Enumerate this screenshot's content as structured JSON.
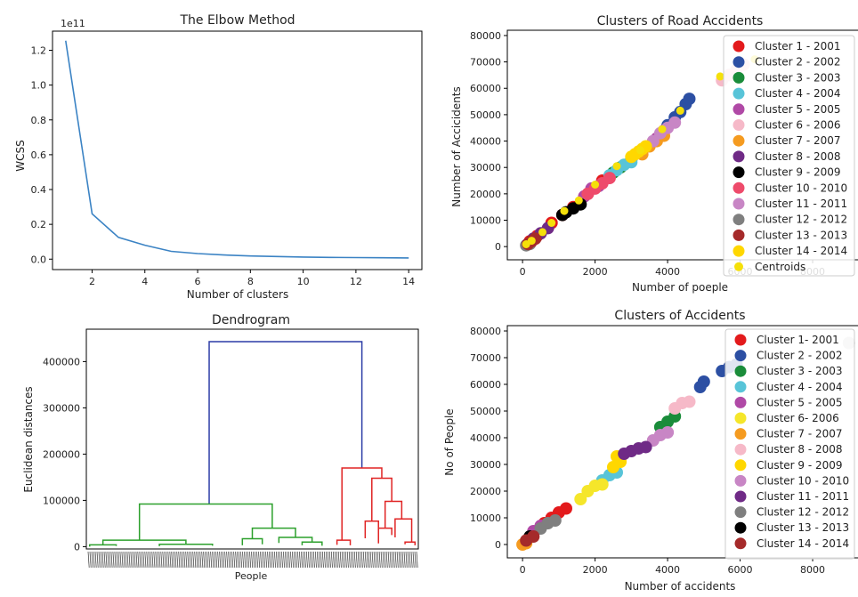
{
  "chart_data": [
    {
      "id": "elbow",
      "type": "line",
      "title": "The Elbow Method",
      "xlabel": "Number of clusters",
      "ylabel": "WCSS",
      "y_offset_label": "1e11",
      "xlim": [
        0.5,
        14.5
      ],
      "ylim": [
        -0.06,
        1.31
      ],
      "xticks": [
        2,
        4,
        6,
        8,
        10,
        12,
        14
      ],
      "yticks": [
        0.0,
        0.2,
        0.4,
        0.6,
        0.8,
        1.0,
        1.2
      ],
      "ytick_labels": [
        "0.0",
        "0.2",
        "0.4",
        "0.6",
        "0.8",
        "1.0",
        "1.2"
      ],
      "x": [
        1,
        2,
        3,
        4,
        5,
        6,
        7,
        8,
        9,
        10,
        11,
        12,
        13,
        14
      ],
      "y": [
        1.255,
        0.26,
        0.125,
        0.08,
        0.045,
        0.032,
        0.024,
        0.018,
        0.015,
        0.012,
        0.01,
        0.009,
        0.008,
        0.007
      ],
      "color": "#3b83c4"
    },
    {
      "id": "dendrogram",
      "type": "dendrogram",
      "title": "Dendrogram",
      "xlabel": "People",
      "ylabel": "Euclidean distances",
      "ylim": [
        -5000,
        470000
      ],
      "yticks": [
        0,
        100000,
        200000,
        300000,
        400000
      ],
      "ytick_labels": [
        "0",
        "100000",
        "200000",
        "300000",
        "400000"
      ],
      "colors": {
        "root": "#2b3ca6",
        "left": "#2ca02c",
        "right": "#e02424"
      },
      "links": [
        {
          "group": "root",
          "x1": 0.37,
          "x2": 0.83,
          "h1": 92000,
          "h2": 170000,
          "top": 443000
        },
        {
          "group": "left",
          "x1": 0.16,
          "x2": 0.56,
          "h1": 14000,
          "h2": 40000,
          "top": 92000
        },
        {
          "group": "left",
          "x1": 0.05,
          "x2": 0.3,
          "h1": 4000,
          "h2": 5000,
          "top": 14000
        },
        {
          "group": "left",
          "x1": 0.01,
          "x2": 0.09,
          "h1": 0,
          "h2": 1500,
          "top": 4000
        },
        {
          "group": "left",
          "x1": 0.22,
          "x2": 0.38,
          "h1": 1000,
          "h2": 2000,
          "top": 5000
        },
        {
          "group": "left",
          "x1": 0.5,
          "x2": 0.63,
          "h1": 17000,
          "h2": 20000,
          "top": 40000
        },
        {
          "group": "left",
          "x1": 0.47,
          "x2": 0.53,
          "h1": 3000,
          "h2": 5000,
          "top": 17000
        },
        {
          "group": "left",
          "x1": 0.58,
          "x2": 0.68,
          "h1": 8000,
          "h2": 10000,
          "top": 20000
        },
        {
          "group": "left",
          "x1": 0.65,
          "x2": 0.71,
          "h1": 3000,
          "h2": 2000,
          "top": 10000
        },
        {
          "group": "right",
          "x1": 0.77,
          "x2": 0.89,
          "h1": 14000,
          "h2": 148000,
          "top": 170000
        },
        {
          "group": "right",
          "x1": 0.755,
          "x2": 0.795,
          "h1": 4000,
          "h2": 3000,
          "top": 14000
        },
        {
          "group": "right",
          "x1": 0.86,
          "x2": 0.92,
          "h1": 55000,
          "h2": 98000,
          "top": 148000
        },
        {
          "group": "right",
          "x1": 0.84,
          "x2": 0.88,
          "h1": 18000,
          "h2": 7000,
          "top": 55000
        },
        {
          "group": "right",
          "x1": 0.9,
          "x2": 0.95,
          "h1": 40000,
          "h2": 60000,
          "top": 98000
        },
        {
          "group": "right",
          "x1": 0.88,
          "x2": 0.92,
          "h1": 10000,
          "h2": 25000,
          "top": 40000
        },
        {
          "group": "right",
          "x1": 0.93,
          "x2": 0.98,
          "h1": 20000,
          "h2": 10000,
          "top": 60000
        },
        {
          "group": "right",
          "x1": 0.96,
          "x2": 0.99,
          "h1": 5000,
          "h2": 3000,
          "top": 10000
        }
      ]
    },
    {
      "id": "road",
      "type": "scatter",
      "title": "Clusters of Road Accidents",
      "xlabel": "Number of poeple",
      "ylabel": "Number of Accicidents",
      "xlim": [
        -420,
        9300
      ],
      "ylim": [
        -5000,
        82000
      ],
      "xticks": [
        0,
        2000,
        4000,
        6000,
        8000
      ],
      "yticks": [
        0,
        10000,
        20000,
        30000,
        40000,
        50000,
        60000,
        70000,
        80000
      ],
      "legend_position": "upper right",
      "series": [
        {
          "name": "Cluster 1 - 2001",
          "color": "#e31a1c",
          "points": [
            [
              200,
              2000
            ],
            [
              400,
              4000
            ],
            [
              800,
              9000
            ],
            [
              1100,
              12000
            ],
            [
              1400,
              15000
            ],
            [
              1800,
              20000
            ],
            [
              2200,
              25000
            ]
          ]
        },
        {
          "name": "Cluster 2 - 2002",
          "color": "#2c4fa3",
          "points": [
            [
              4000,
              46000
            ],
            [
              4200,
              49000
            ],
            [
              4350,
              51000
            ],
            [
              4500,
              54000
            ],
            [
              4600,
              56000
            ]
          ]
        },
        {
          "name": "Cluster 3 - 2003",
          "color": "#1a8c3a",
          "points": [
            [
              2500,
              28000
            ],
            [
              2700,
              30000
            ],
            [
              3000,
              33000
            ]
          ]
        },
        {
          "name": "Cluster 4 - 2004",
          "color": "#58c4d8",
          "points": [
            [
              2400,
              27000
            ],
            [
              2600,
              29000
            ],
            [
              2800,
              31000
            ],
            [
              3000,
              32000
            ]
          ]
        },
        {
          "name": "Cluster 5 - 2005",
          "color": "#b049a6",
          "points": [
            [
              1700,
              19000
            ],
            [
              1900,
              22000
            ],
            [
              2100,
              23000
            ],
            [
              3700,
              41000
            ],
            [
              3900,
              44000
            ]
          ]
        },
        {
          "name": "Cluster 6 - 2006",
          "color": "#f6b9c8",
          "points": [
            [
              5500,
              63000
            ],
            [
              5700,
              65000
            ],
            [
              5900,
              67000
            ],
            [
              6100,
              69000
            ]
          ]
        },
        {
          "name": "Cluster 7 - 2007",
          "color": "#f59b20",
          "points": [
            [
              3300,
              35000
            ],
            [
              3500,
              38000
            ],
            [
              3700,
              40000
            ],
            [
              3900,
              42000
            ]
          ]
        },
        {
          "name": "Cluster 8 - 2008",
          "color": "#6f2a86",
          "points": [
            [
              300,
              3000
            ],
            [
              500,
              5000
            ],
            [
              700,
              7000
            ]
          ]
        },
        {
          "name": "Cluster 9 - 2009",
          "color": "#000000",
          "points": [
            [
              1100,
              12000
            ],
            [
              1200,
              13000
            ],
            [
              1400,
              14500
            ],
            [
              1600,
              16000
            ]
          ]
        },
        {
          "name": "Cluster 10 - 2010",
          "color": "#ee4b6b",
          "points": [
            [
              1800,
              20000
            ],
            [
              2000,
              22000
            ],
            [
              2200,
              24000
            ],
            [
              2400,
              26000
            ]
          ]
        },
        {
          "name": "Cluster 11 - 2011",
          "color": "#c886c5",
          "points": [
            [
              3600,
              40000
            ],
            [
              3800,
              43000
            ],
            [
              4000,
              45000
            ],
            [
              4200,
              47000
            ]
          ]
        },
        {
          "name": "Cluster 12 - 2012",
          "color": "#7f7f7f",
          "points": [
            [
              100,
              500
            ],
            [
              200,
              1000
            ]
          ]
        },
        {
          "name": "Cluster 13 - 2013",
          "color": "#a52a2a",
          "points": [
            [
              150,
              1000
            ],
            [
              250,
              2000
            ],
            [
              350,
              3000
            ]
          ]
        },
        {
          "name": "Cluster 14 - 2014",
          "color": "#ffd700",
          "points": [
            [
              3000,
              34000
            ],
            [
              3200,
              36000
            ],
            [
              3400,
              38000
            ],
            [
              3100,
              35000
            ],
            [
              3300,
              37000
            ]
          ]
        }
      ],
      "centroids": {
        "name": "Centroids",
        "color": "#f5e00a",
        "points": [
          [
            100,
            900
          ],
          [
            250,
            2200
          ],
          [
            550,
            5500
          ],
          [
            800,
            9000
          ],
          [
            1150,
            13500
          ],
          [
            1550,
            17500
          ],
          [
            2000,
            23500
          ],
          [
            2600,
            30500
          ],
          [
            3250,
            36500
          ],
          [
            3850,
            44500
          ],
          [
            4350,
            51500
          ],
          [
            5450,
            64500
          ],
          [
            6400,
            71000
          ]
        ]
      }
    },
    {
      "id": "accidents",
      "type": "scatter",
      "title": "Clusters of Accidents",
      "xlabel": "Number of accidents",
      "ylabel": "No of People",
      "xlim": [
        -420,
        9300
      ],
      "ylim": [
        -5000,
        82000
      ],
      "xticks": [
        0,
        2000,
        4000,
        6000,
        8000
      ],
      "yticks": [
        0,
        10000,
        20000,
        30000,
        40000,
        50000,
        60000,
        70000,
        80000
      ],
      "legend_position": "upper right",
      "series": [
        {
          "name": "Cluster 1- 2001",
          "color": "#e31a1c",
          "points": [
            [
              600,
              8000
            ],
            [
              800,
              10000
            ],
            [
              1000,
              12000
            ],
            [
              1200,
              13500
            ]
          ]
        },
        {
          "name": "Cluster 2 - 2002",
          "color": "#2c4fa3",
          "points": [
            [
              4900,
              59000
            ],
            [
              5000,
              61000
            ],
            [
              5500,
              65000
            ],
            [
              5700,
              66500
            ],
            [
              5900,
              67500
            ]
          ]
        },
        {
          "name": "Cluster 3 - 2003",
          "color": "#1a8c3a",
          "points": [
            [
              3800,
              44000
            ],
            [
              4000,
              46000
            ],
            [
              4200,
              48000
            ]
          ]
        },
        {
          "name": "Cluster 4 - 2004",
          "color": "#58c4d8",
          "points": [
            [
              2200,
              24000
            ],
            [
              2400,
              26000
            ],
            [
              2600,
              27000
            ]
          ]
        },
        {
          "name": "Cluster 5 - 2005",
          "color": "#b049a6",
          "points": [
            [
              300,
              5000
            ],
            [
              500,
              7000
            ]
          ]
        },
        {
          "name": "Cluster 6- 2006",
          "color": "#f5e62a",
          "points": [
            [
              1600,
              17000
            ],
            [
              1800,
              20000
            ],
            [
              2000,
              22000
            ],
            [
              2200,
              22500
            ]
          ]
        },
        {
          "name": "Cluster 7 - 2007",
          "color": "#f59b20",
          "points": [
            [
              0,
              0
            ],
            [
              100,
              500
            ]
          ]
        },
        {
          "name": "Cluster 8 - 2008",
          "color": "#f6b9c8",
          "points": [
            [
              4200,
              51000
            ],
            [
              4400,
              53000
            ],
            [
              4600,
              53500
            ]
          ]
        },
        {
          "name": "Cluster 9 - 2009",
          "color": "#ffd700",
          "points": [
            [
              2500,
              29000
            ],
            [
              2700,
              31000
            ],
            [
              2600,
              33000
            ]
          ]
        },
        {
          "name": "Cluster 10 - 2010",
          "color": "#c886c5",
          "points": [
            [
              3600,
              39000
            ],
            [
              3800,
              41000
            ],
            [
              4000,
              42000
            ]
          ]
        },
        {
          "name": "Cluster 11 - 2011",
          "color": "#6f2a86",
          "points": [
            [
              2800,
              34000
            ],
            [
              3000,
              35000
            ],
            [
              3200,
              36000
            ],
            [
              3400,
              36500
            ]
          ]
        },
        {
          "name": "Cluster 12 - 2012",
          "color": "#7f7f7f",
          "points": [
            [
              500,
              6000
            ],
            [
              700,
              8000
            ],
            [
              900,
              9000
            ]
          ]
        },
        {
          "name": "Cluster 13 - 2013",
          "color": "#000000",
          "points": [
            [
              200,
              3000
            ]
          ]
        },
        {
          "name": "Cluster 14 - 2014",
          "color": "#a52a2a",
          "points": [
            [
              100,
              1500
            ],
            [
              300,
              3000
            ]
          ]
        }
      ],
      "extra_points": [
        {
          "color": "#cfcfcf",
          "points": [
            [
              9000,
              75500
            ]
          ]
        }
      ]
    }
  ]
}
